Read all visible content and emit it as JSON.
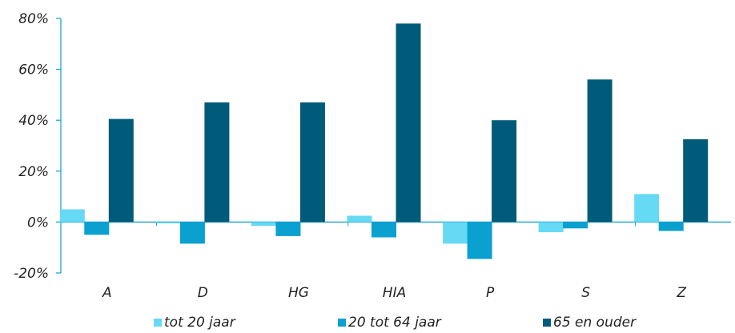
{
  "chart_data": {
    "type": "bar",
    "categories": [
      "A",
      "D",
      "HG",
      "HIA",
      "P",
      "S",
      "Z"
    ],
    "series": [
      {
        "name": "tot 20 jaar",
        "values": [
          5,
          -0.5,
          -1.5,
          2.5,
          -8.5,
          -4,
          11
        ],
        "color": "#66d9f5"
      },
      {
        "name": "20 tot 64 jaar",
        "values": [
          -5,
          -8.5,
          -5.5,
          -6,
          -14.5,
          -2.5,
          -3.5
        ],
        "color": "#0aa0cf"
      },
      {
        "name": "65 en ouder",
        "values": [
          40.5,
          47,
          47,
          78,
          40,
          56,
          32.5
        ],
        "color": "#005a7a"
      }
    ],
    "y_ticks": [
      "80%",
      "60%",
      "40%",
      "20%",
      "0%",
      "-20%"
    ],
    "y_tick_values": [
      80,
      60,
      40,
      20,
      0,
      -20
    ],
    "ylim": [
      -20,
      80
    ],
    "grid": false,
    "legend_position": "bottom",
    "axis_color": "#0aa0cf"
  }
}
